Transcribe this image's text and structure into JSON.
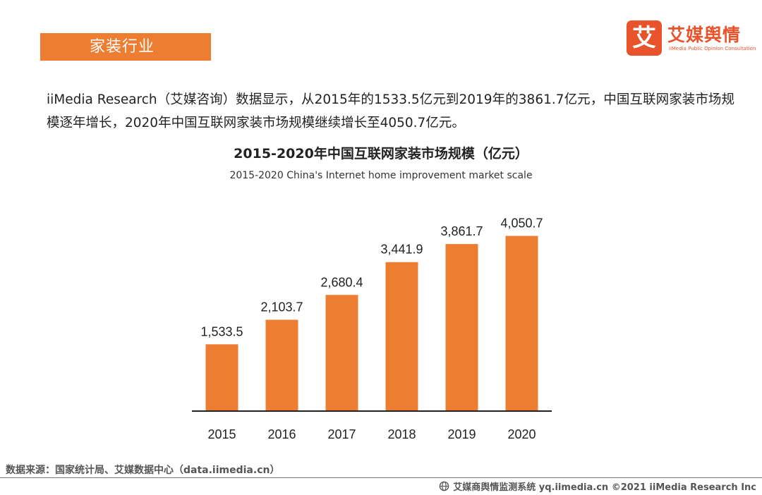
{
  "header": {
    "section_tag": "家装行业",
    "logo_mark": "艾",
    "logo_name": "艾媒舆情",
    "logo_sub": "iiMedia Public Opinion Consultation"
  },
  "intro_text": "iiMedia Research（艾媒咨询）数据显示，从2015年的1533.5亿元到2019年的3861.7亿元，中国互联网家装市场规模逐年增长，2020年中国互联网家装市场规模继续增长至4050.7亿元。",
  "chart_data": {
    "type": "bar",
    "title": "2015-2020年中国互联网家装市场规模（亿元）",
    "subtitle": "2015-2020 China's Internet home improvement market scale",
    "categories": [
      "2015",
      "2016",
      "2017",
      "2018",
      "2019",
      "2020"
    ],
    "values": [
      1533.5,
      2103.7,
      2680.4,
      3441.9,
      3861.7,
      4050.7
    ],
    "value_labels": [
      "1,533.5",
      "2,103.7",
      "2,680.4",
      "3,441.9",
      "3,861.7",
      "4,050.7"
    ],
    "ylim": [
      0,
      4600
    ],
    "xlabel": "",
    "ylabel": "",
    "bar_color": "#ed7d31",
    "grid": false,
    "legend": "none"
  },
  "source_text": "数据来源：国家统计局、艾媒数据中心（data.iimedia.cn）",
  "footer_text": "艾媒商舆情监测系统 yq.iimedia.cn  ©2021  iiMedia Research  Inc",
  "colors": {
    "accent": "#ed7d31",
    "brand": "#e8532b"
  }
}
